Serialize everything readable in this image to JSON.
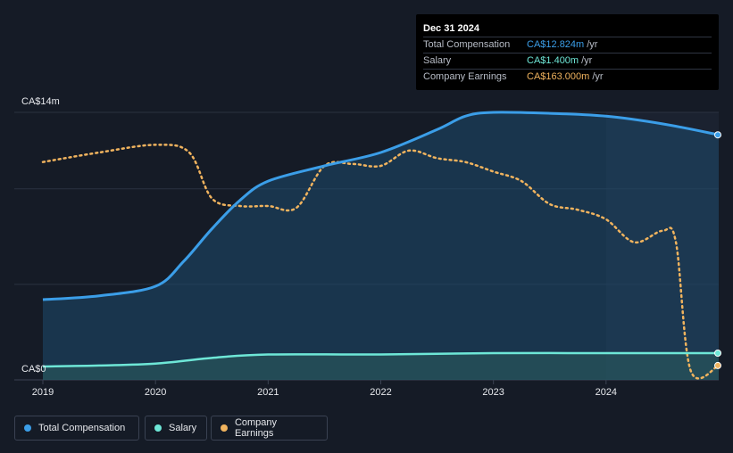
{
  "tooltip": {
    "date": "Dec 31 2024",
    "rows": [
      {
        "label": "Total Compensation",
        "value": "CA$12.824m",
        "unit": "/yr",
        "color": "#3b9ee8"
      },
      {
        "label": "Salary",
        "value": "CA$1.400m",
        "unit": "/yr",
        "color": "#6ee7d7"
      },
      {
        "label": "Company Earnings",
        "value": "CA$163.000m",
        "unit": "/yr",
        "color": "#f0b35e"
      }
    ]
  },
  "legend": [
    {
      "label": "Total Compensation",
      "color": "#3b9ee8"
    },
    {
      "label": "Salary",
      "color": "#6ee7d7"
    },
    {
      "label": "Company Earnings",
      "color": "#f0b35e"
    }
  ],
  "chart_data": {
    "type": "line",
    "ytop_label": "CA$14m",
    "ybottom_label": "CA$0",
    "ylim": [
      0,
      14
    ],
    "xlim": [
      2019.0,
      2025.0
    ],
    "x_ticks": [
      "2019",
      "2020",
      "2021",
      "2022",
      "2023",
      "2024"
    ],
    "series": [
      {
        "name": "Total Compensation",
        "color": "#3b9ee8",
        "unit": "CA$m",
        "points": [
          [
            2019.0,
            4.2
          ],
          [
            2019.5,
            4.4
          ],
          [
            2020.0,
            4.9
          ],
          [
            2020.25,
            6.2
          ],
          [
            2020.5,
            7.9
          ],
          [
            2020.75,
            9.4
          ],
          [
            2021.0,
            10.4
          ],
          [
            2021.5,
            11.2
          ],
          [
            2022.0,
            11.9
          ],
          [
            2022.5,
            13.1
          ],
          [
            2022.75,
            13.8
          ],
          [
            2023.0,
            14.0
          ],
          [
            2023.5,
            13.95
          ],
          [
            2024.0,
            13.8
          ],
          [
            2024.5,
            13.4
          ],
          [
            2025.0,
            12.824
          ]
        ]
      },
      {
        "name": "Salary",
        "color": "#6ee7d7",
        "unit": "CA$m",
        "points": [
          [
            2019.0,
            0.7
          ],
          [
            2019.5,
            0.75
          ],
          [
            2020.0,
            0.85
          ],
          [
            2020.5,
            1.15
          ],
          [
            2021.0,
            1.33
          ],
          [
            2022.0,
            1.33
          ],
          [
            2023.0,
            1.4
          ],
          [
            2024.0,
            1.4
          ],
          [
            2025.0,
            1.4
          ]
        ]
      },
      {
        "name": "Company Earnings",
        "unit": "CA$m (shown rescaled)",
        "color": "#f0b35e",
        "points": [
          [
            2019.0,
            11.4
          ],
          [
            2019.5,
            11.9
          ],
          [
            2020.0,
            12.3
          ],
          [
            2020.3,
            11.9
          ],
          [
            2020.5,
            9.5
          ],
          [
            2020.75,
            9.1
          ],
          [
            2021.0,
            9.1
          ],
          [
            2021.25,
            9.0
          ],
          [
            2021.5,
            11.2
          ],
          [
            2021.75,
            11.3
          ],
          [
            2022.0,
            11.2
          ],
          [
            2022.25,
            12.0
          ],
          [
            2022.5,
            11.6
          ],
          [
            2022.75,
            11.4
          ],
          [
            2023.0,
            10.9
          ],
          [
            2023.25,
            10.4
          ],
          [
            2023.5,
            9.2
          ],
          [
            2023.75,
            8.9
          ],
          [
            2024.0,
            8.4
          ],
          [
            2024.25,
            7.2
          ],
          [
            2024.5,
            7.8
          ],
          [
            2024.62,
            7.2
          ],
          [
            2024.75,
            0.5
          ],
          [
            2025.0,
            0.75
          ]
        ]
      }
    ]
  }
}
